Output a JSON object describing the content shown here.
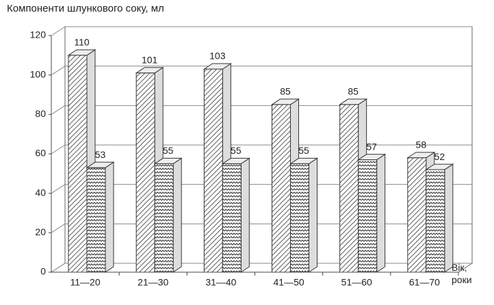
{
  "chart_data": {
    "type": "bar3d",
    "title": "Компоненти шлункового соку, мл",
    "x_label": "Вік, роки",
    "categories": [
      "11—20",
      "21—30",
      "31—40",
      "41—50",
      "51—60",
      "61—70"
    ],
    "series": [
      {
        "color": "#333333",
        "pattern": "diagonal-hatch",
        "values": [
          110,
          101,
          103,
          85,
          85,
          58
        ]
      },
      {
        "color": "#333333",
        "pattern": "wave",
        "values": [
          53,
          55,
          55,
          55,
          57,
          52
        ]
      }
    ],
    "ylim": [
      0,
      120
    ],
    "yticks": [
      0,
      20,
      40,
      60,
      80,
      100,
      120
    ],
    "grid": true
  }
}
